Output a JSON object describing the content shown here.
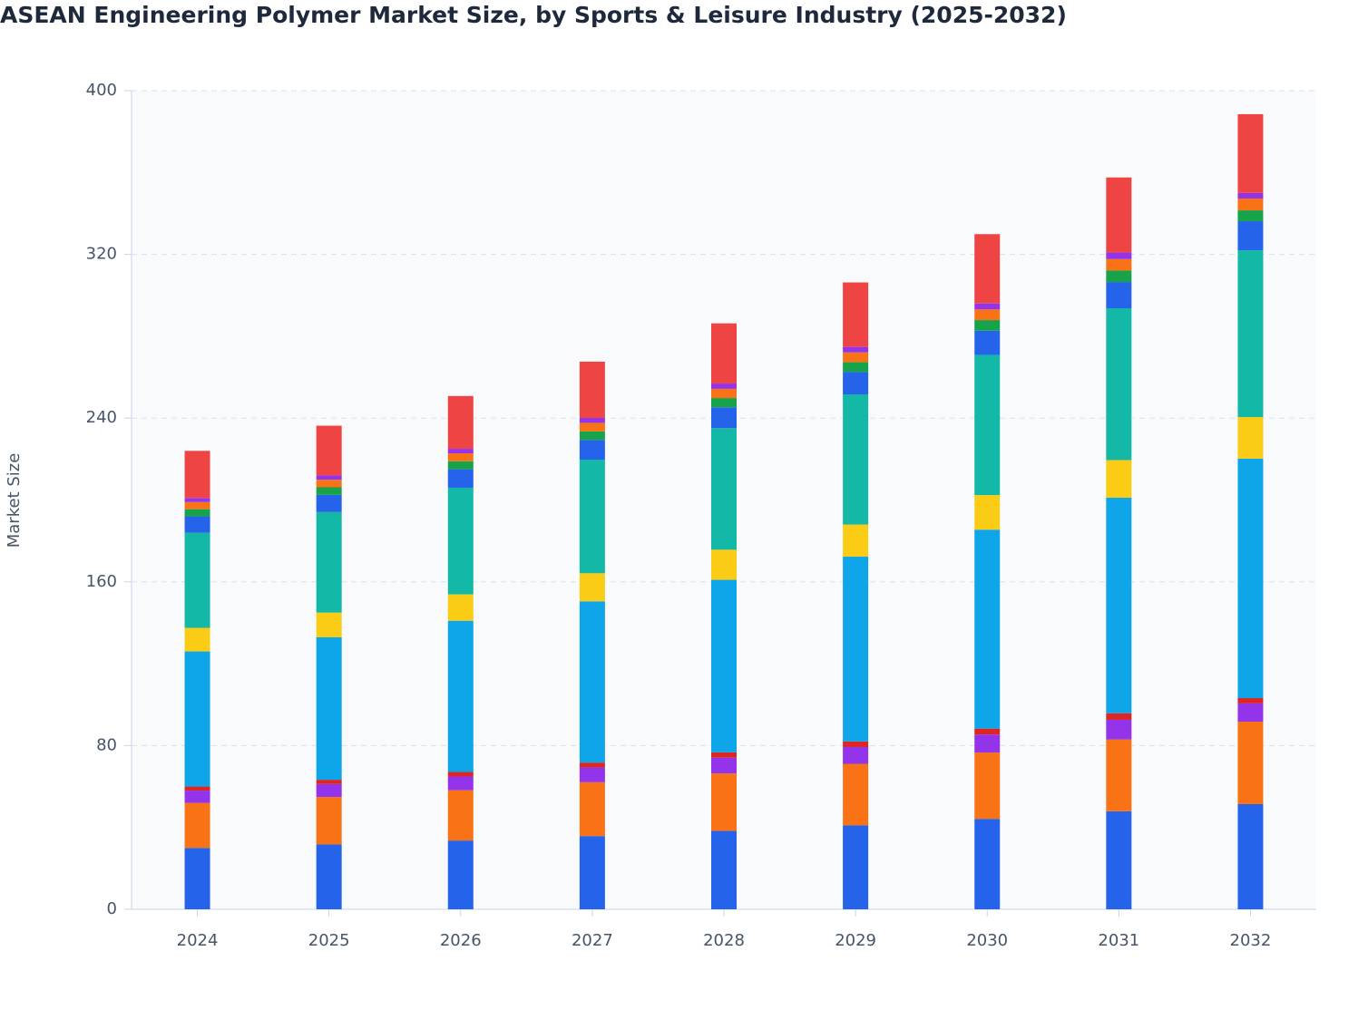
{
  "chart_data": {
    "type": "stacked_bar",
    "title": "ASEAN Engineering Polymer Market Size, by Sports & Leisure Industry (2025-2032)",
    "y_label": "Market Size",
    "categories": [
      "2024",
      "2025",
      "2026",
      "2027",
      "2028",
      "2029",
      "2030",
      "2031",
      "2032"
    ],
    "series": [
      {
        "color": "#2563eb",
        "values": [
          30,
          31.7,
          33.6,
          35.8,
          38.3,
          41,
          44.2,
          47.9,
          51.4
        ]
      },
      {
        "color": "#f97316",
        "values": [
          22,
          23.2,
          24.6,
          26.3,
          28.1,
          30.1,
          32.4,
          35.1,
          40.3
        ]
      },
      {
        "color": "#9333ea",
        "values": [
          6,
          6.3,
          6.7,
          7.2,
          7.7,
          8.2,
          8.8,
          9.6,
          8.9
        ]
      },
      {
        "color": "#dc2626",
        "values": [
          2,
          2.1,
          2.2,
          2.4,
          2.6,
          2.7,
          2.9,
          3.2,
          2.6
        ]
      },
      {
        "color": "#0ea5e9",
        "values": [
          66,
          69.6,
          73.9,
          78.8,
          84.3,
          90.3,
          97.2,
          105.3,
          117
        ]
      },
      {
        "color": "#facc15",
        "values": [
          11.5,
          12.1,
          12.9,
          13.7,
          14.7,
          15.7,
          16.9,
          18.4,
          20.3
        ]
      },
      {
        "color": "#14b8a6",
        "values": [
          46.5,
          49.1,
          52.1,
          55.5,
          59.4,
          63.6,
          68.5,
          74.2,
          81.5
        ]
      },
      {
        "color": "#2563eb",
        "values": [
          8,
          8.4,
          9,
          9.6,
          10.2,
          10.9,
          11.8,
          12.8,
          14.2
        ]
      },
      {
        "color": "#16a34a",
        "values": [
          3.5,
          3.7,
          3.9,
          4.2,
          4.5,
          4.8,
          5.2,
          5.6,
          5.3
        ]
      },
      {
        "color": "#f97316",
        "values": [
          3.5,
          3.7,
          3.9,
          4.2,
          4.5,
          4.8,
          5.2,
          5.6,
          5.8
        ]
      },
      {
        "color": "#9333ea",
        "values": [
          2,
          2.1,
          2.2,
          2.4,
          2.6,
          2.7,
          2.9,
          3.2,
          2.7
        ]
      },
      {
        "color": "#ef4444",
        "values": [
          23,
          24.3,
          25.8,
          27.5,
          29.4,
          31.5,
          33.9,
          36.7,
          38.5
        ]
      }
    ],
    "ylim": [
      0,
      400
    ],
    "yticks": [
      0,
      80,
      160,
      240,
      320,
      400
    ],
    "grid": true
  }
}
